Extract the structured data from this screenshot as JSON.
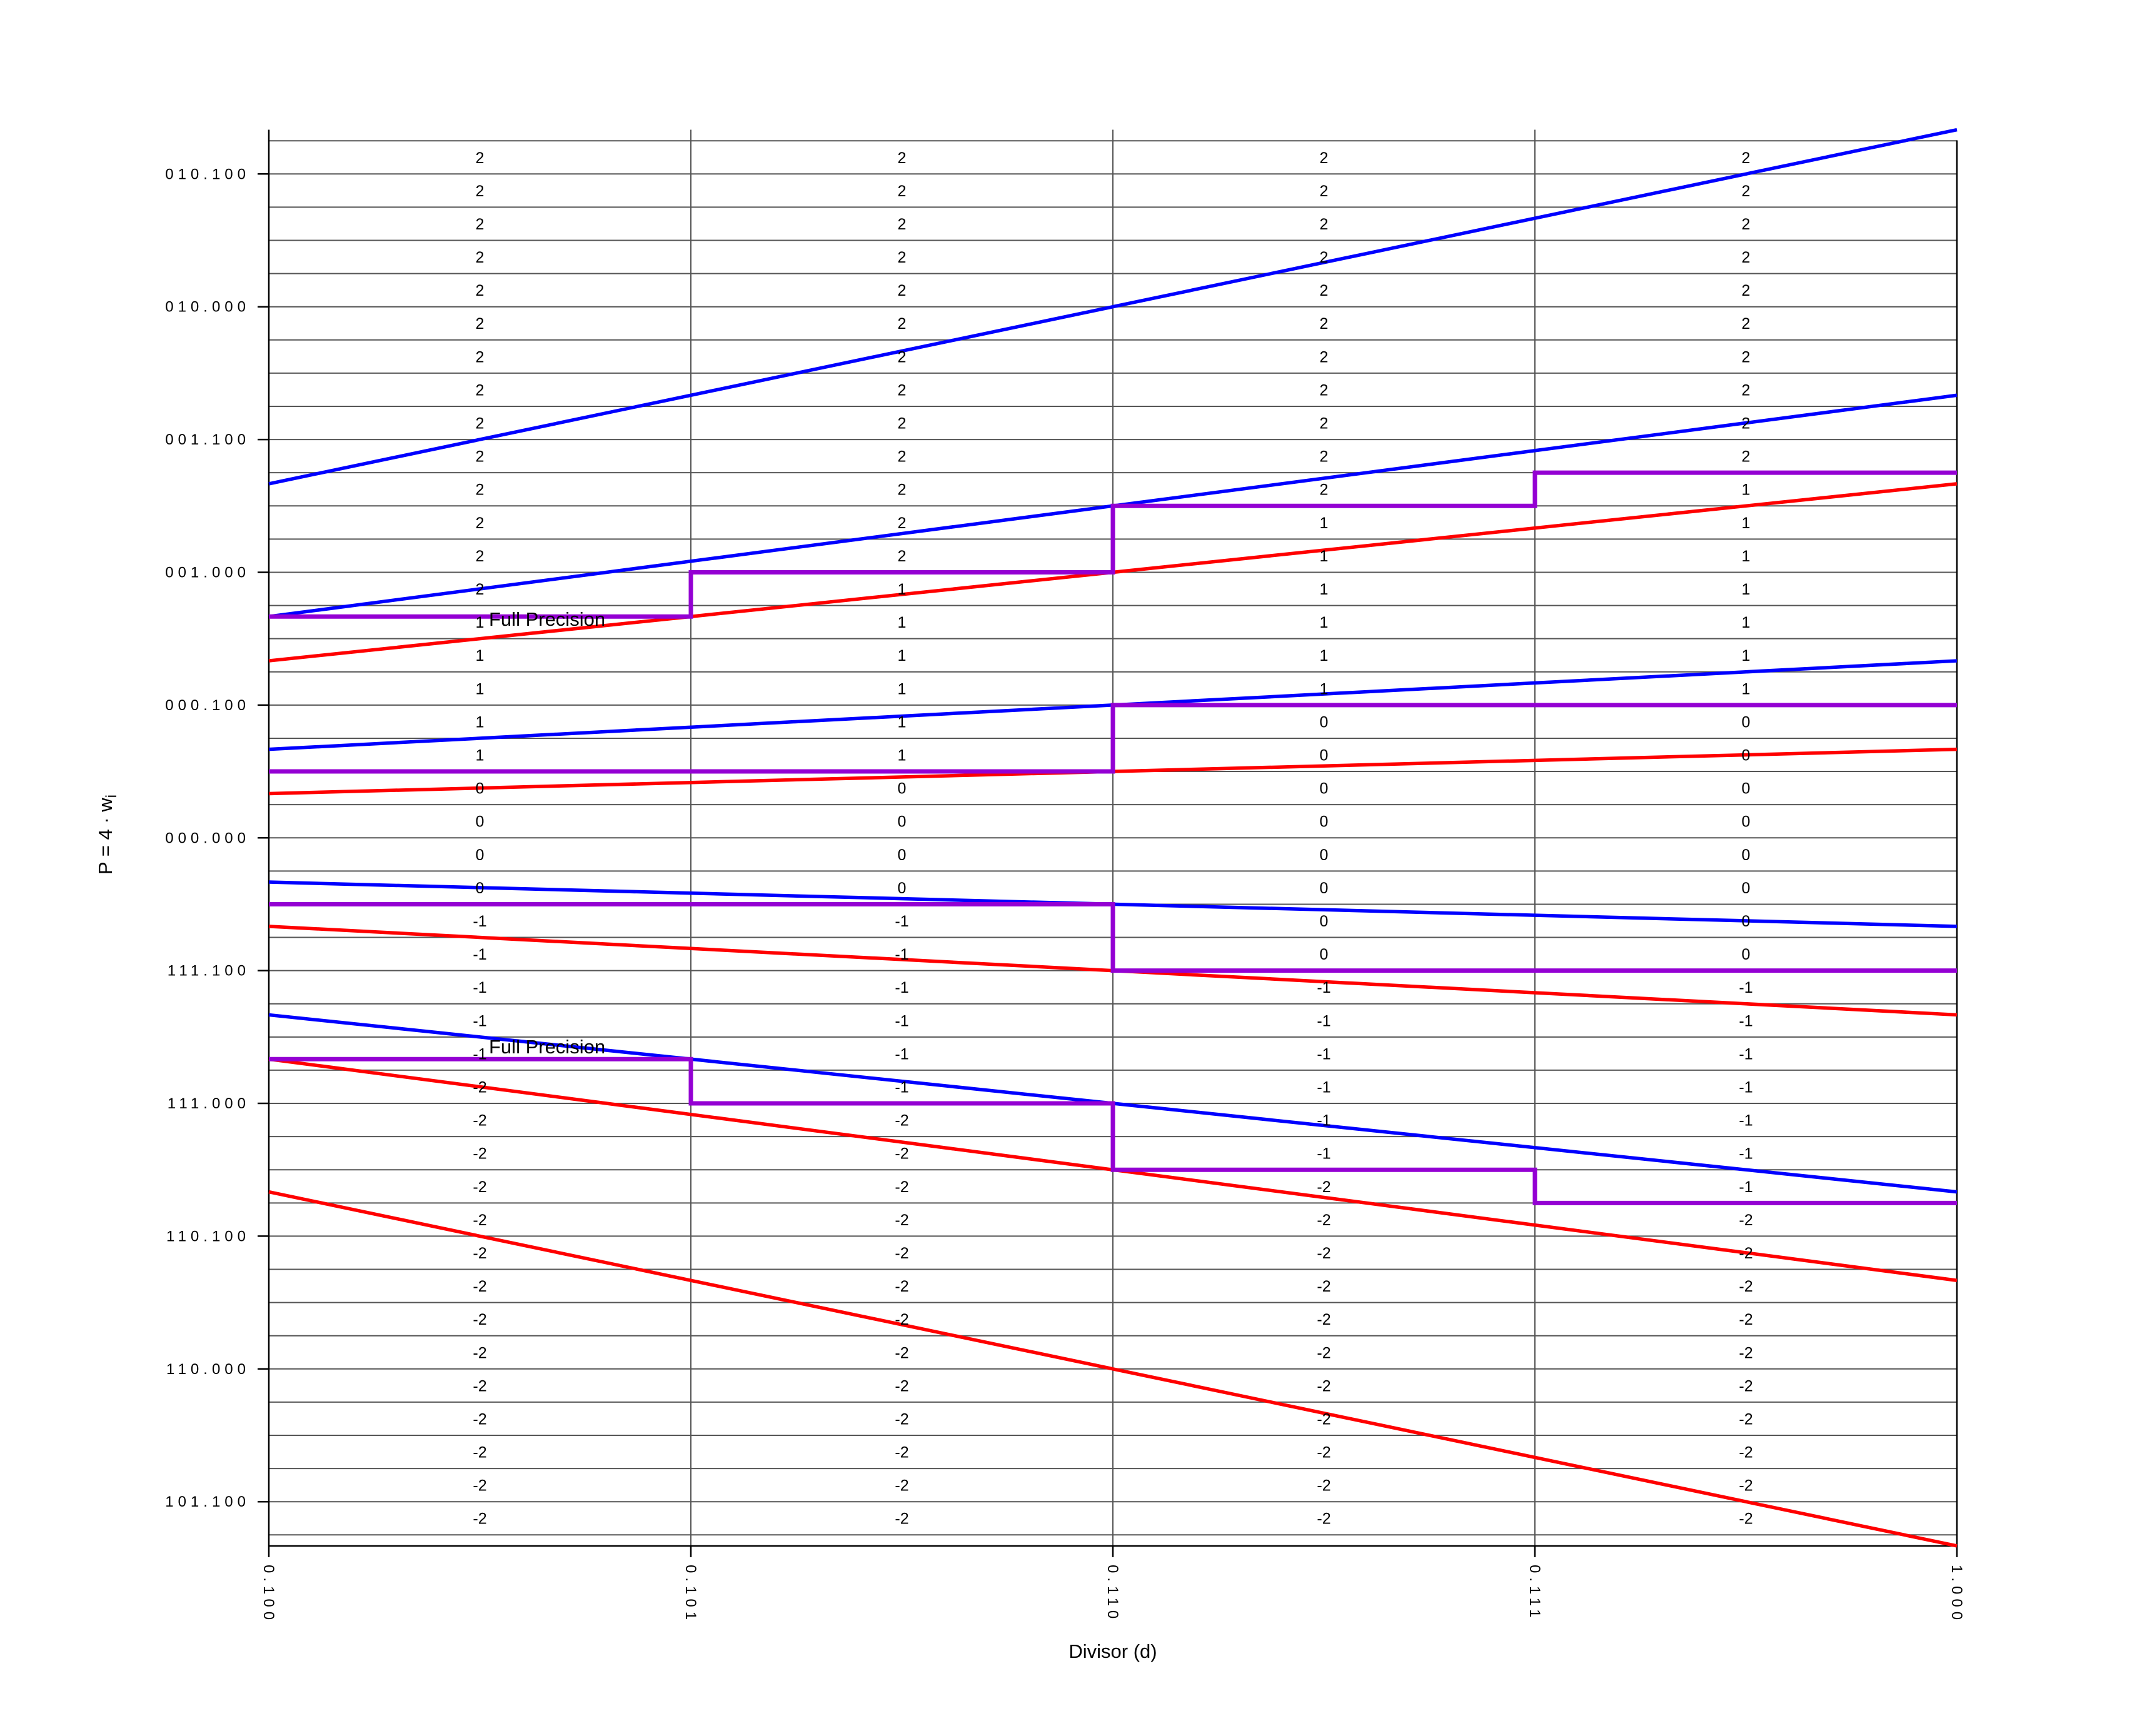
{
  "figure": {
    "description": "P-D diagram: radix-4 SRT division quotient digit selection table",
    "background_color": "#ffffff",
    "axes": {
      "x": {
        "title": "Divisor (d)",
        "range": [
          0.5,
          1.0
        ],
        "tick_labels": [
          "0.100",
          "0.101",
          "0.110",
          "0.111",
          "1.000"
        ],
        "tick_values": [
          0.5,
          0.625,
          0.75,
          0.875,
          1.0
        ]
      },
      "y": {
        "title_main": "P = 4 · w",
        "title_sub": "i",
        "range": [
          -2.6667,
          2.6667
        ],
        "tick_labels": [
          "010.100",
          "010.000",
          "001.100",
          "001.000",
          "000.100",
          "000.000",
          "111.100",
          "111.000",
          "110.100",
          "110.000",
          "101.100"
        ],
        "tick_values": [
          2.5,
          2.0,
          1.5,
          1.0,
          0.5,
          0.0,
          -0.5,
          -1.0,
          -1.5,
          -2.0,
          -2.5
        ]
      }
    },
    "colors": {
      "upper_bound_lines": "#0000ff",
      "lower_bound_lines": "#ff0000",
      "selection_staircase": "#9400d3",
      "grid": "#555555",
      "axis": "#000000",
      "text": "#000000"
    }
  },
  "chart_data": {
    "type": "line",
    "title": "",
    "xlabel": "Divisor (d)",
    "ylabel": "P = 4 · w_i",
    "xlim": [
      0.5,
      1.0
    ],
    "ylim": [
      -2.6667,
      2.6667
    ],
    "grid": {
      "horizontal_step": 0.125,
      "vertical_lines_at": [
        0.625,
        0.75,
        0.875
      ]
    },
    "x_ticks": {
      "values": [
        0.5,
        0.625,
        0.75,
        0.875,
        1.0
      ],
      "labels": [
        "0.100",
        "0.101",
        "0.110",
        "0.111",
        "1.000"
      ]
    },
    "y_ticks": {
      "values": [
        2.5,
        2.0,
        1.5,
        1.0,
        0.5,
        0.0,
        -0.5,
        -1.0,
        -1.5,
        -2.0,
        -2.5
      ],
      "labels": [
        "010.100",
        "010.000",
        "001.100",
        "001.000",
        "000.100",
        "000.000",
        "111.100",
        "111.000",
        "110.100",
        "110.000",
        "101.100"
      ]
    },
    "line_model": "P = slope × d, drawn for d in [0.5, 1.0]",
    "upper_bound_lines_blue": [
      {
        "digit": 2,
        "slope": 2.66667
      },
      {
        "digit": 1,
        "slope": 1.66667
      },
      {
        "digit": 0,
        "slope": 0.66667
      },
      {
        "digit": -1,
        "slope": -0.33333
      },
      {
        "digit": -2,
        "slope": -1.33333
      }
    ],
    "lower_bound_lines_red": [
      {
        "digit": 2,
        "slope": 1.33333
      },
      {
        "digit": 1,
        "slope": 0.33333
      },
      {
        "digit": 0,
        "slope": -0.66667
      },
      {
        "digit": -1,
        "slope": -1.66667
      },
      {
        "digit": -2,
        "slope": -2.66667
      }
    ],
    "selection_staircases_purple": [
      {
        "boundary": "2-1",
        "column_edges": [
          0.5,
          0.625,
          0.75,
          0.875,
          1.0
        ],
        "thresholds": [
          0.83333,
          1.0,
          1.25,
          1.375
        ]
      },
      {
        "boundary": "1-0",
        "column_edges": [
          0.5,
          0.625,
          0.75,
          0.875,
          1.0
        ],
        "thresholds": [
          0.25,
          0.25,
          0.5,
          0.5
        ]
      },
      {
        "boundary": "0-m1",
        "column_edges": [
          0.5,
          0.625,
          0.75,
          0.875,
          1.0
        ],
        "thresholds": [
          -0.25,
          -0.25,
          -0.5,
          -0.5
        ]
      },
      {
        "boundary": "m1-m2",
        "column_edges": [
          0.5,
          0.625,
          0.75,
          0.875,
          1.0
        ],
        "thresholds": [
          -0.83333,
          -1.0,
          -1.25,
          -1.375
        ]
      }
    ],
    "digit_table": {
      "column_centers": [
        0.5625,
        0.6875,
        0.8125,
        0.9375
      ],
      "row_centers": [
        2.5625,
        2.4375,
        2.3125,
        2.1875,
        2.0625,
        1.9375,
        1.8125,
        1.6875,
        1.5625,
        1.4375,
        1.3125,
        1.1875,
        1.0625,
        0.9375,
        0.8125,
        0.6875,
        0.5625,
        0.4375,
        0.3125,
        0.1875,
        0.0625,
        -0.0625,
        -0.1875,
        -0.3125,
        -0.4375,
        -0.5625,
        -0.6875,
        -0.8125,
        -0.9375,
        -1.0625,
        -1.1875,
        -1.3125,
        -1.4375,
        -1.5625,
        -1.6875,
        -1.8125,
        -1.9375,
        -2.0625,
        -2.1875,
        -2.3125,
        -2.4375,
        -2.5625
      ],
      "digits": [
        [
          2,
          2,
          2,
          2
        ],
        [
          2,
          2,
          2,
          2
        ],
        [
          2,
          2,
          2,
          2
        ],
        [
          2,
          2,
          2,
          2
        ],
        [
          2,
          2,
          2,
          2
        ],
        [
          2,
          2,
          2,
          2
        ],
        [
          2,
          2,
          2,
          2
        ],
        [
          2,
          2,
          2,
          2
        ],
        [
          2,
          2,
          2,
          2
        ],
        [
          2,
          2,
          2,
          2
        ],
        [
          2,
          2,
          2,
          1
        ],
        [
          2,
          2,
          1,
          1
        ],
        [
          2,
          2,
          1,
          1
        ],
        [
          2,
          1,
          1,
          1
        ],
        [
          1,
          1,
          1,
          1
        ],
        [
          1,
          1,
          1,
          1
        ],
        [
          1,
          1,
          1,
          1
        ],
        [
          1,
          1,
          0,
          0
        ],
        [
          1,
          1,
          0,
          0
        ],
        [
          0,
          0,
          0,
          0
        ],
        [
          0,
          0,
          0,
          0
        ],
        [
          0,
          0,
          0,
          0
        ],
        [
          0,
          0,
          0,
          0
        ],
        [
          -1,
          -1,
          0,
          0
        ],
        [
          -1,
          -1,
          0,
          0
        ],
        [
          -1,
          -1,
          -1,
          -1
        ],
        [
          -1,
          -1,
          -1,
          -1
        ],
        [
          -1,
          -1,
          -1,
          -1
        ],
        [
          -2,
          -1,
          -1,
          -1
        ],
        [
          -2,
          -2,
          -1,
          -1
        ],
        [
          -2,
          -2,
          -1,
          -1
        ],
        [
          -2,
          -2,
          -2,
          -1
        ],
        [
          -2,
          -2,
          -2,
          -2
        ],
        [
          -2,
          -2,
          -2,
          -2
        ],
        [
          -2,
          -2,
          -2,
          -2
        ],
        [
          -2,
          -2,
          -2,
          -2
        ],
        [
          -2,
          -2,
          -2,
          -2
        ],
        [
          -2,
          -2,
          -2,
          -2
        ],
        [
          -2,
          -2,
          -2,
          -2
        ],
        [
          -2,
          -2,
          -2,
          -2
        ],
        [
          -2,
          -2,
          -2,
          -2
        ],
        [
          -2,
          -2,
          -2,
          -2
        ]
      ]
    },
    "annotations": [
      {
        "text": "Full Precision",
        "d": 0.565,
        "P": 0.8333,
        "placement": "below-staircase"
      },
      {
        "text": "Full Precision",
        "d": 0.565,
        "P": -0.8333,
        "placement": "above-staircase"
      }
    ],
    "legend": "none"
  }
}
